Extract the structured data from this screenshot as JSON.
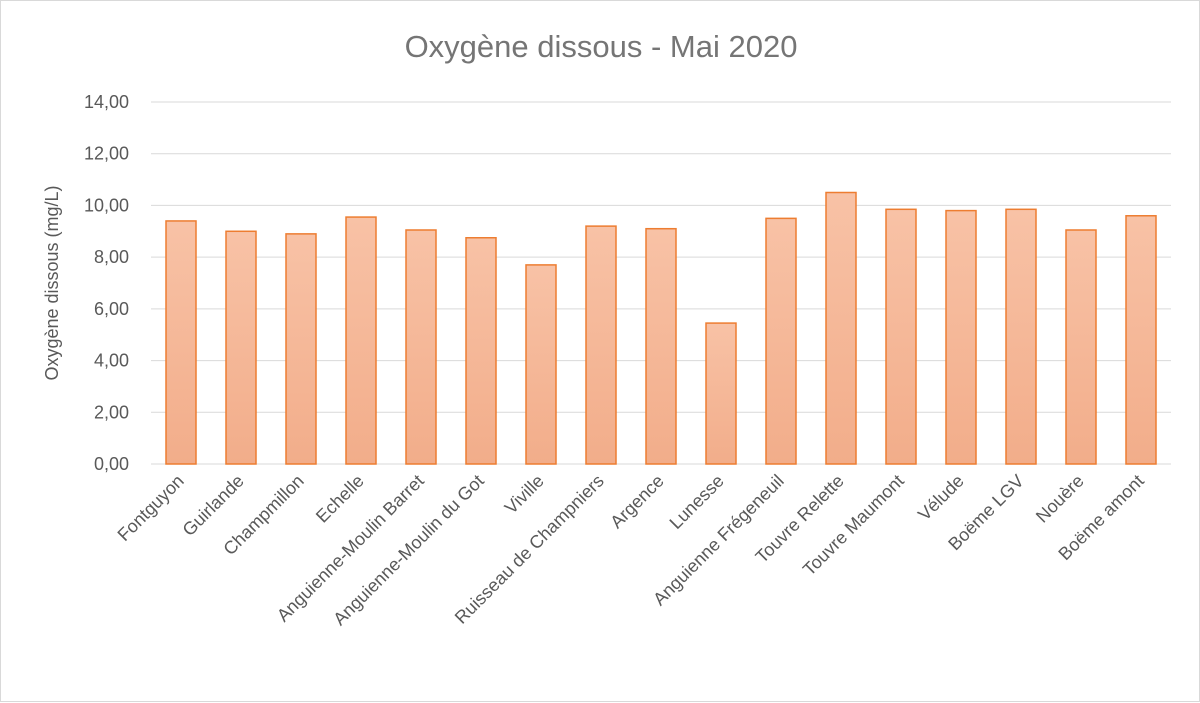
{
  "chart_data": {
    "type": "bar",
    "title": "Oxygène dissous - Mai 2020",
    "xlabel": "",
    "ylabel": "Oxygène dissous (mg/L)",
    "ylim": [
      0,
      14
    ],
    "yticks": [
      "0,00",
      "2,00",
      "4,00",
      "6,00",
      "8,00",
      "10,00",
      "12,00",
      "14,00"
    ],
    "grid": true,
    "legend": "none",
    "colors": {
      "bar_fill_top": "#f8c2a6",
      "bar_fill_bottom": "#f2ad8a",
      "bar_stroke": "#ed7d31",
      "grid": "#d9d9d9"
    },
    "categories": [
      "Fontguyon",
      "Guirlande",
      "Champmillon",
      "Echelle",
      "Anguienne-Moulin Barret",
      "Anguienne-Moulin du Got",
      "Viville",
      "Ruisseau de Champniers",
      "Argence",
      "Lunesse",
      "Anguienne Frégeneuil",
      "Touvre Relette",
      "Touvre Maumont",
      "Vélude",
      "Boëme LGV",
      "Nouère",
      "Boëme amont"
    ],
    "values": [
      9.4,
      9.0,
      8.9,
      9.55,
      9.05,
      8.75,
      7.7,
      9.2,
      9.1,
      5.45,
      9.5,
      10.5,
      9.85,
      9.8,
      9.85,
      9.05,
      9.6
    ]
  }
}
